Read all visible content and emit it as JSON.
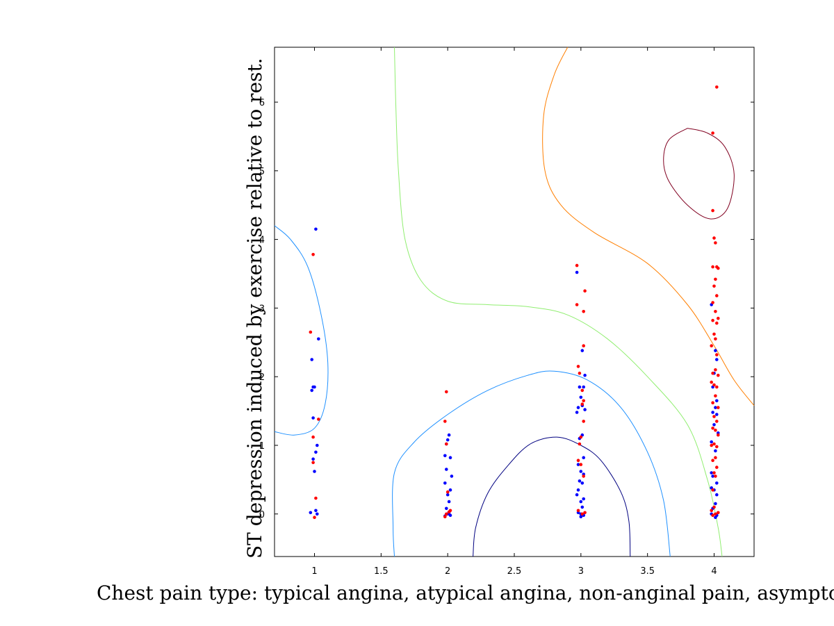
{
  "chart_data": {
    "type": "scatter",
    "title": "",
    "xlabel": "Chest pain type: typical angina, atypical angina, non-anginal pain, asymptomatic",
    "ylabel": "ST depression induced by exercise relative to rest.",
    "xlim": [
      0.7,
      4.3
    ],
    "ylim": [
      -0.62,
      6.8
    ],
    "xticks": [
      1,
      1.5,
      2,
      2.5,
      3,
      3.5,
      4
    ],
    "xtick_labels": [
      "1",
      "1.5",
      "2",
      "2.5",
      "3",
      "3.5",
      "4"
    ],
    "yticks": [
      0,
      1,
      2,
      3,
      4,
      5,
      6
    ],
    "ytick_labels": [
      "0",
      "1",
      "2",
      "3",
      "4",
      "5",
      "6"
    ],
    "grid": false,
    "legend": "none",
    "series": [
      {
        "color": "#0000ff",
        "points": [
          [
            1.01,
            4.15
          ],
          [
            1.03,
            2.55
          ],
          [
            0.98,
            2.25
          ],
          [
            0.99,
            1.85
          ],
          [
            1.0,
            1.85
          ],
          [
            0.98,
            1.8
          ],
          [
            0.99,
            1.4
          ],
          [
            1.02,
            1.0
          ],
          [
            1.01,
            0.9
          ],
          [
            0.99,
            0.8
          ],
          [
            1.0,
            0.62
          ],
          [
            0.97,
            0.02
          ],
          [
            1.01,
            0.05
          ],
          [
            1.02,
            0.0
          ],
          [
            2.01,
            1.15
          ],
          [
            2.0,
            1.08
          ],
          [
            1.99,
            1.02
          ],
          [
            1.98,
            0.85
          ],
          [
            2.02,
            0.82
          ],
          [
            1.99,
            0.65
          ],
          [
            2.03,
            0.55
          ],
          [
            1.98,
            0.45
          ],
          [
            2.02,
            0.35
          ],
          [
            2.0,
            0.28
          ],
          [
            2.01,
            0.18
          ],
          [
            1.99,
            0.08
          ],
          [
            2.0,
            0.0
          ],
          [
            2.02,
            -0.02
          ],
          [
            1.98,
            -0.03
          ],
          [
            2.01,
            0.02
          ],
          [
            2.97,
            3.52
          ],
          [
            3.01,
            2.38
          ],
          [
            3.03,
            2.02
          ],
          [
            2.99,
            1.85
          ],
          [
            3.02,
            1.85
          ],
          [
            3.0,
            1.7
          ],
          [
            2.98,
            1.55
          ],
          [
            3.01,
            1.58
          ],
          [
            3.03,
            1.52
          ],
          [
            2.97,
            1.48
          ],
          [
            3.01,
            1.15
          ],
          [
            2.99,
            1.1
          ],
          [
            3.02,
            0.82
          ],
          [
            2.98,
            0.72
          ],
          [
            3.0,
            0.62
          ],
          [
            3.02,
            0.58
          ],
          [
            2.99,
            0.48
          ],
          [
            3.01,
            0.45
          ],
          [
            2.98,
            0.35
          ],
          [
            3.02,
            0.22
          ],
          [
            3.0,
            0.18
          ],
          [
            2.97,
            0.28
          ],
          [
            3.01,
            0.1
          ],
          [
            3.0,
            0.0
          ],
          [
            3.02,
            -0.02
          ],
          [
            2.98,
            0.02
          ],
          [
            3.0,
            -0.04
          ],
          [
            3.98,
            3.05
          ],
          [
            4.01,
            2.38
          ],
          [
            4.02,
            2.25
          ],
          [
            4.0,
            2.05
          ],
          [
            3.99,
            1.85
          ],
          [
            4.02,
            1.65
          ],
          [
            4.01,
            1.55
          ],
          [
            3.99,
            1.48
          ],
          [
            4.02,
            1.45
          ],
          [
            4.0,
            1.3
          ],
          [
            4.03,
            1.18
          ],
          [
            3.98,
            1.05
          ],
          [
            4.01,
            0.92
          ],
          [
            3.98,
            0.6
          ],
          [
            3.99,
            0.55
          ],
          [
            4.02,
            0.45
          ],
          [
            3.98,
            0.38
          ],
          [
            4.0,
            0.35
          ],
          [
            4.02,
            0.28
          ],
          [
            4.01,
            0.15
          ],
          [
            3.99,
            0.08
          ],
          [
            4.02,
            -0.02
          ],
          [
            3.98,
            0.0
          ],
          [
            4.01,
            -0.05
          ]
        ]
      },
      {
        "color": "#ff0000",
        "points": [
          [
            0.99,
            3.78
          ],
          [
            0.97,
            2.65
          ],
          [
            1.03,
            1.38
          ],
          [
            0.99,
            1.12
          ],
          [
            0.99,
            0.75
          ],
          [
            1.01,
            0.23
          ],
          [
            1.0,
            -0.05
          ],
          [
            1.99,
            1.78
          ],
          [
            1.98,
            1.35
          ],
          [
            1.99,
            1.02
          ],
          [
            2.0,
            0.32
          ],
          [
            1.99,
            0.0
          ],
          [
            2.01,
            0.03
          ],
          [
            2.02,
            0.05
          ],
          [
            1.98,
            -0.04
          ],
          [
            2.97,
            3.62
          ],
          [
            3.03,
            3.25
          ],
          [
            2.97,
            3.05
          ],
          [
            3.02,
            2.95
          ],
          [
            3.02,
            2.45
          ],
          [
            2.98,
            2.15
          ],
          [
            2.99,
            2.05
          ],
          [
            3.01,
            1.8
          ],
          [
            3.02,
            1.65
          ],
          [
            3.01,
            1.6
          ],
          [
            3.02,
            1.35
          ],
          [
            3.0,
            1.12
          ],
          [
            2.99,
            1.02
          ],
          [
            2.98,
            0.78
          ],
          [
            3.0,
            0.72
          ],
          [
            3.02,
            0.55
          ],
          [
            2.98,
            0.05
          ],
          [
            3.01,
            0.0
          ],
          [
            3.03,
            0.02
          ],
          [
            4.02,
            6.22
          ],
          [
            3.99,
            5.55
          ],
          [
            3.99,
            4.42
          ],
          [
            4.0,
            4.02
          ],
          [
            4.01,
            3.95
          ],
          [
            3.99,
            3.6
          ],
          [
            4.02,
            3.6
          ],
          [
            4.03,
            3.58
          ],
          [
            4.01,
            3.42
          ],
          [
            4.0,
            3.32
          ],
          [
            4.02,
            3.18
          ],
          [
            3.99,
            3.08
          ],
          [
            4.01,
            2.95
          ],
          [
            4.03,
            2.85
          ],
          [
            3.99,
            2.82
          ],
          [
            4.02,
            2.78
          ],
          [
            4.0,
            2.62
          ],
          [
            4.01,
            2.55
          ],
          [
            3.98,
            2.45
          ],
          [
            4.02,
            2.32
          ],
          [
            4.01,
            2.1
          ],
          [
            3.99,
            2.05
          ],
          [
            4.03,
            2.02
          ],
          [
            3.98,
            1.92
          ],
          [
            4.0,
            1.88
          ],
          [
            4.02,
            1.85
          ],
          [
            4.01,
            1.72
          ],
          [
            3.99,
            1.62
          ],
          [
            4.03,
            1.55
          ],
          [
            4.0,
            1.42
          ],
          [
            4.02,
            1.35
          ],
          [
            3.99,
            1.25
          ],
          [
            4.01,
            1.22
          ],
          [
            4.03,
            1.15
          ],
          [
            4.0,
            1.02
          ],
          [
            3.98,
            1.0
          ],
          [
            4.02,
            0.98
          ],
          [
            4.01,
            0.82
          ],
          [
            3.99,
            0.78
          ],
          [
            4.02,
            0.68
          ],
          [
            4.0,
            0.6
          ],
          [
            4.01,
            0.55
          ],
          [
            3.99,
            0.35
          ],
          [
            4.0,
            0.1
          ],
          [
            3.98,
            0.05
          ],
          [
            4.01,
            0.0
          ],
          [
            4.03,
            0.02
          ],
          [
            3.99,
            -0.02
          ]
        ]
      }
    ],
    "contours": [
      {
        "color": "#000080",
        "points": [
          [
            2.19,
            -0.62
          ],
          [
            2.21,
            -0.2
          ],
          [
            2.3,
            0.3
          ],
          [
            2.45,
            0.7
          ],
          [
            2.62,
            1.02
          ],
          [
            2.82,
            1.12
          ],
          [
            3.0,
            1.0
          ],
          [
            3.15,
            0.78
          ],
          [
            3.3,
            0.32
          ],
          [
            3.36,
            -0.1
          ],
          [
            3.37,
            -0.62
          ]
        ]
      },
      {
        "color": "#1e90ff",
        "points": [
          [
            0.7,
            4.2
          ],
          [
            0.82,
            4.0
          ],
          [
            0.95,
            3.6
          ],
          [
            1.05,
            2.9
          ],
          [
            1.1,
            2.2
          ],
          [
            1.08,
            1.6
          ],
          [
            1.0,
            1.25
          ],
          [
            0.85,
            1.15
          ],
          [
            0.7,
            1.2
          ]
        ]
      },
      {
        "color": "#1e90ff",
        "points": [
          [
            1.6,
            -0.62
          ],
          [
            1.59,
            -0.2
          ],
          [
            1.6,
            0.6
          ],
          [
            1.75,
            1.05
          ],
          [
            2.0,
            1.45
          ],
          [
            2.3,
            1.8
          ],
          [
            2.6,
            2.02
          ],
          [
            2.8,
            2.08
          ],
          [
            3.05,
            1.95
          ],
          [
            3.3,
            1.55
          ],
          [
            3.5,
            0.9
          ],
          [
            3.62,
            0.2
          ],
          [
            3.67,
            -0.62
          ]
        ]
      },
      {
        "color": "#90ee70",
        "points": [
          [
            1.6,
            6.8
          ],
          [
            1.61,
            6.0
          ],
          [
            1.63,
            5.0
          ],
          [
            1.68,
            4.0
          ],
          [
            1.8,
            3.4
          ],
          [
            2.0,
            3.1
          ],
          [
            2.3,
            3.05
          ],
          [
            2.6,
            3.02
          ],
          [
            2.9,
            2.9
          ],
          [
            3.2,
            2.55
          ],
          [
            3.5,
            2.0
          ],
          [
            3.8,
            1.3
          ],
          [
            3.95,
            0.5
          ],
          [
            4.03,
            -0.2
          ],
          [
            4.06,
            -0.62
          ]
        ]
      },
      {
        "color": "#ff7f00",
        "points": [
          [
            2.9,
            6.8
          ],
          [
            2.8,
            6.4
          ],
          [
            2.72,
            5.8
          ],
          [
            2.73,
            5.0
          ],
          [
            2.85,
            4.5
          ],
          [
            3.1,
            4.1
          ],
          [
            3.5,
            3.65
          ],
          [
            3.8,
            3.05
          ],
          [
            4.0,
            2.45
          ],
          [
            4.15,
            1.95
          ],
          [
            4.3,
            1.58
          ]
        ]
      },
      {
        "color": "#800020",
        "points": [
          [
            3.8,
            5.62
          ],
          [
            3.95,
            5.55
          ],
          [
            4.08,
            5.35
          ],
          [
            4.15,
            4.95
          ],
          [
            4.1,
            4.45
          ],
          [
            3.97,
            4.3
          ],
          [
            3.8,
            4.5
          ],
          [
            3.66,
            4.85
          ],
          [
            3.62,
            5.15
          ],
          [
            3.66,
            5.45
          ],
          [
            3.8,
            5.62
          ]
        ]
      }
    ]
  }
}
